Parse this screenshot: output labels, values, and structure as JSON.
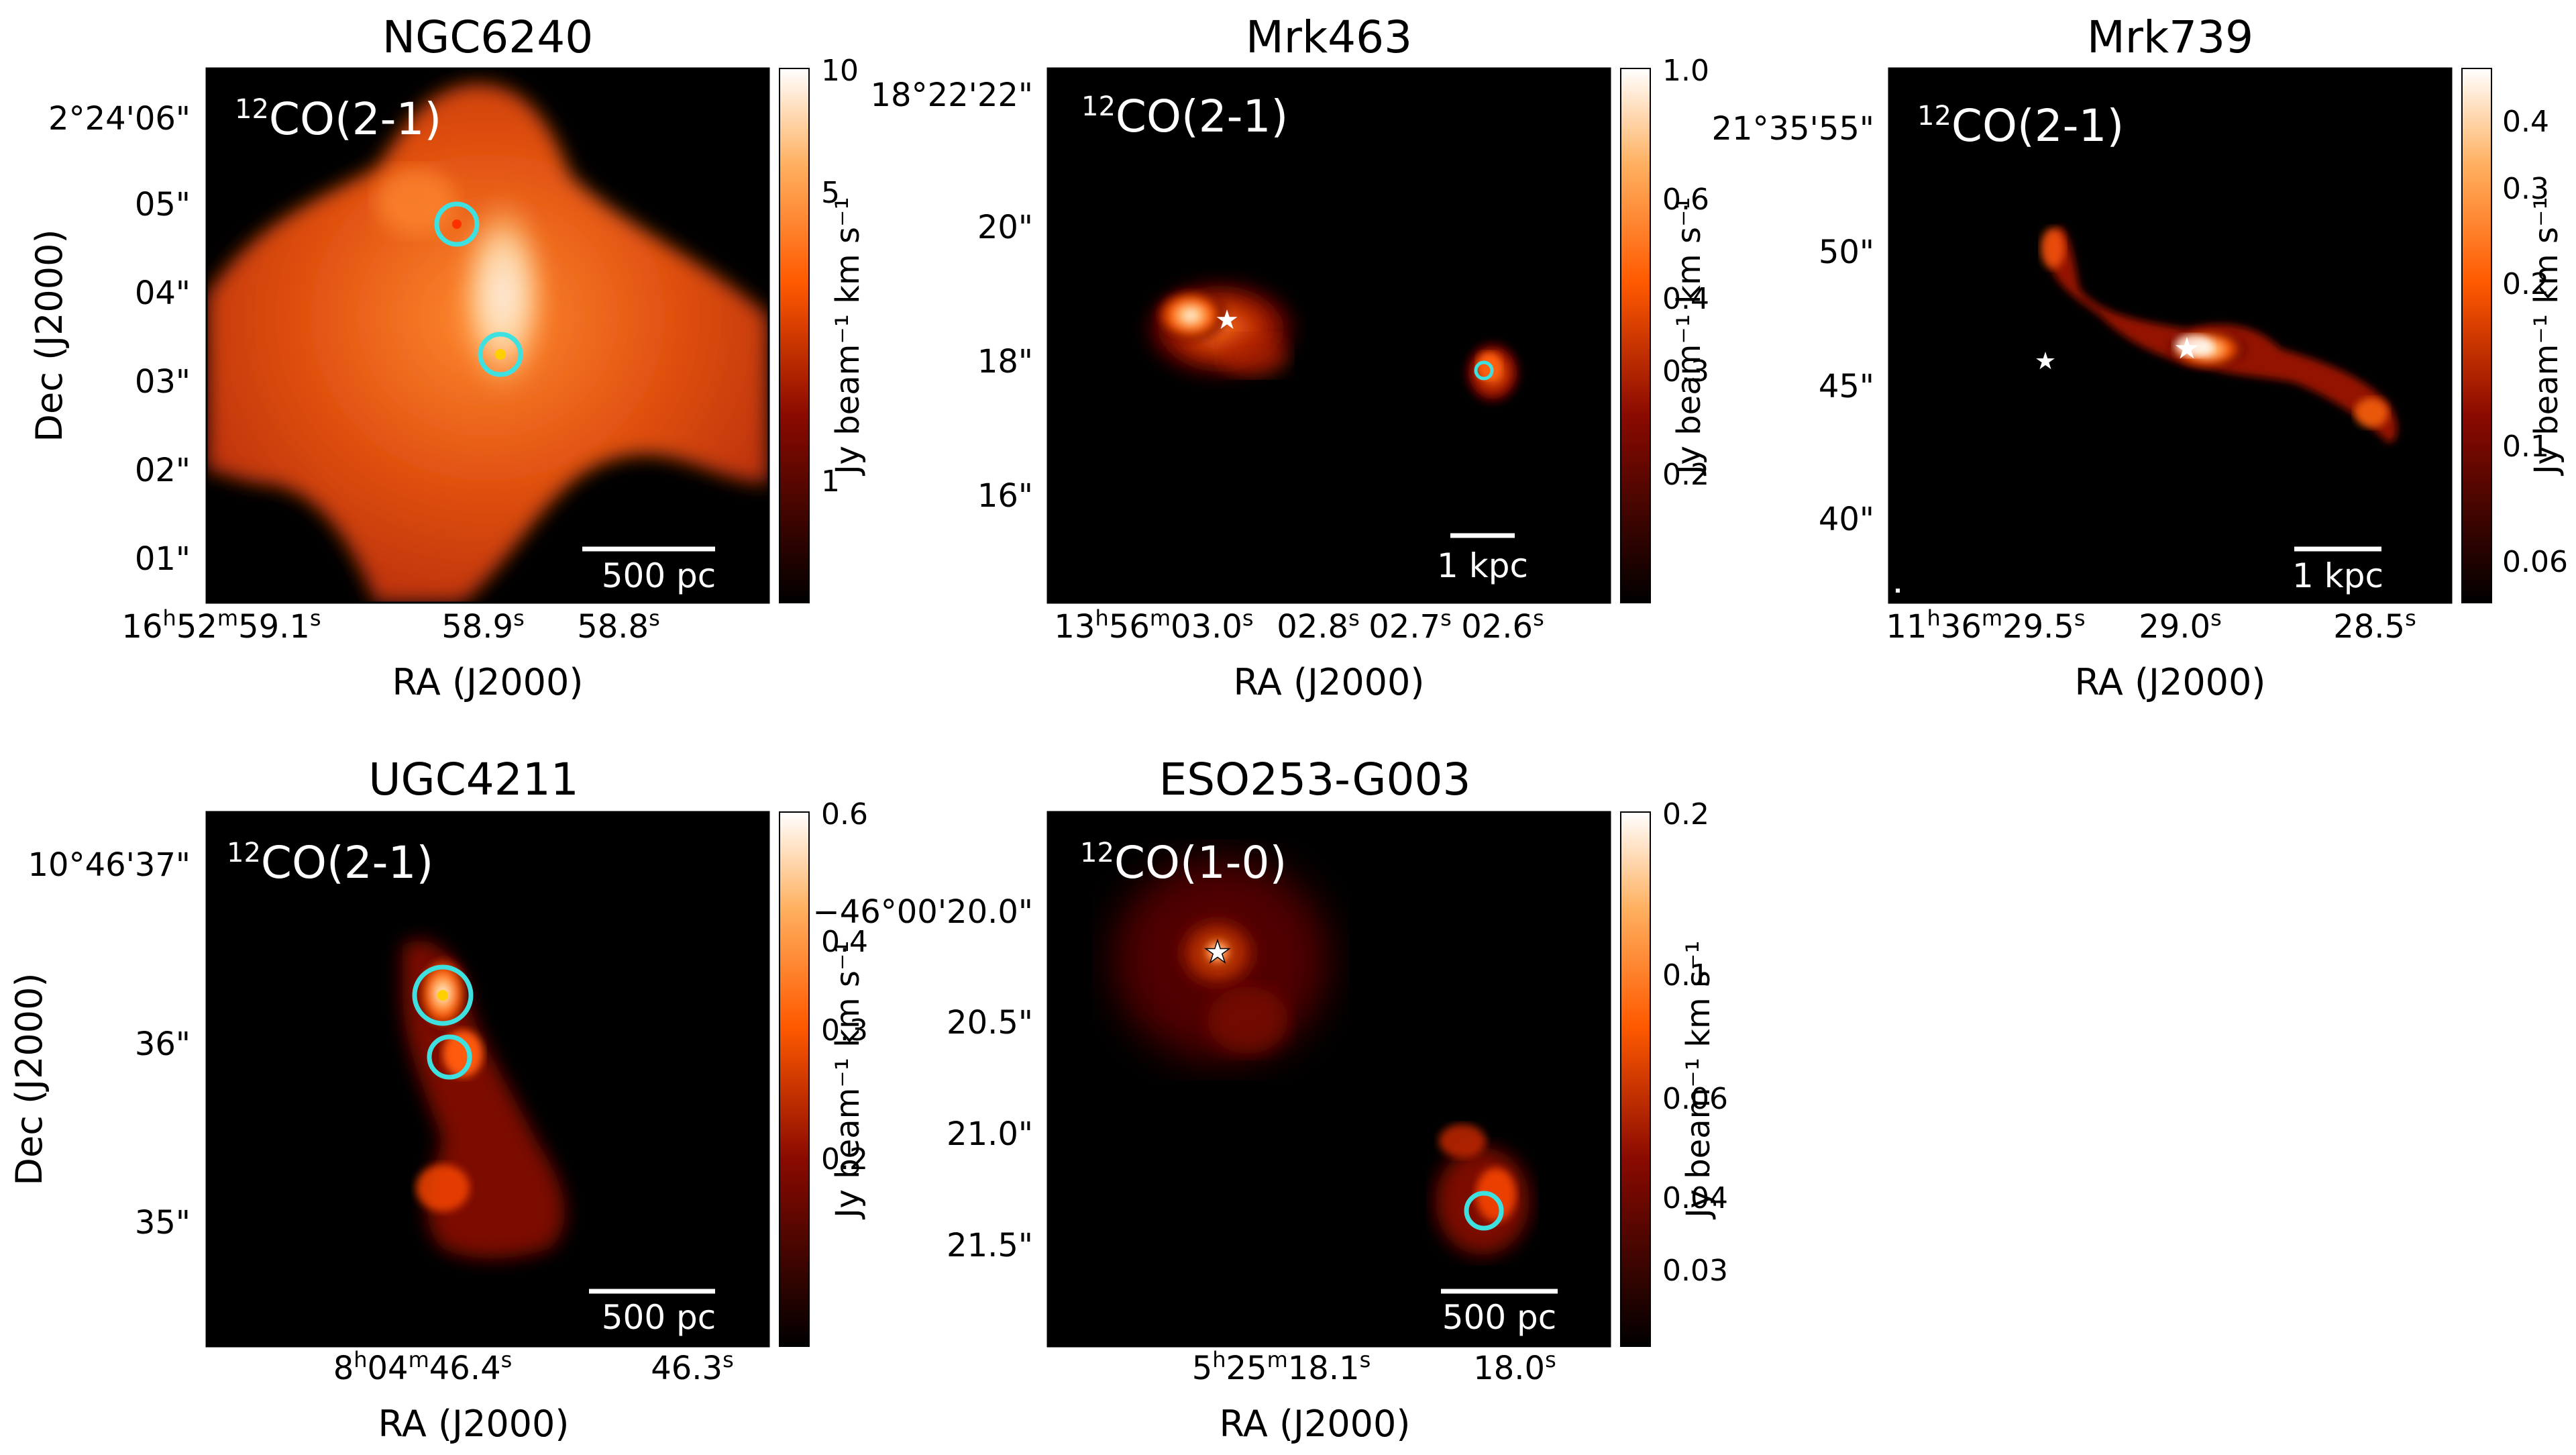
{
  "figure": {
    "panels": [
      {
        "name": "NGC6240",
        "line": {
          "iso": "12",
          "mol": "CO(2-1)"
        },
        "y_label": "Dec (J2000)",
        "x_label": "RA (J2000)",
        "y_ticks": [
          "2°24'06\"",
          "05\"",
          "04\"",
          "03\"",
          "02\"",
          "01\""
        ],
        "x_ticks": [
          {
            "parts": [
              "16",
              "h",
              "52",
              "m",
              "59.1",
              "s"
            ]
          },
          {
            "parts": [
              "",
              "",
              "",
              "",
              "58.9",
              "s"
            ]
          },
          {
            "parts": [
              "",
              "",
              "",
              "",
              "58.8",
              "s"
            ]
          }
        ],
        "colorbar": {
          "label": "Jy beam⁻¹ km s⁻¹",
          "ticks": [
            "10",
            "5",
            "1"
          ]
        },
        "scale_bar": "500 pc",
        "markers": {
          "circles": 2,
          "stars": 0
        }
      },
      {
        "name": "Mrk463",
        "line": {
          "iso": "12",
          "mol": "CO(2-1)"
        },
        "y_label": "",
        "x_label": "RA (J2000)",
        "y_ticks": [
          "18°22'22\"",
          "20\"",
          "18\"",
          "16\""
        ],
        "x_ticks": [
          {
            "parts": [
              "13",
              "h",
              "56",
              "m",
              "03.0",
              "s"
            ]
          },
          {
            "parts": [
              "",
              "",
              "",
              "",
              "02.8",
              "s"
            ]
          },
          {
            "parts": [
              "",
              "",
              "",
              "",
              "02.7",
              "s"
            ]
          },
          {
            "parts": [
              "",
              "",
              "",
              "",
              "02.6",
              "s"
            ]
          }
        ],
        "colorbar": {
          "label": "Jy beam⁻¹ km s⁻¹",
          "ticks": [
            "1.0",
            "0.6",
            "0.4",
            "0.3",
            "0.2"
          ]
        },
        "scale_bar": "1 kpc",
        "markers": {
          "circles": 1,
          "stars": 1
        }
      },
      {
        "name": "Mrk739",
        "line": {
          "iso": "12",
          "mol": "CO(2-1)"
        },
        "y_label": "",
        "x_label": "RA (J2000)",
        "y_ticks": [
          "21°35'55\"",
          "50\"",
          "45\"",
          "40\""
        ],
        "x_ticks": [
          {
            "parts": [
              "11",
              "h",
              "36",
              "m",
              "29.5",
              "s"
            ]
          },
          {
            "parts": [
              "",
              "",
              "",
              "",
              "29.0",
              "s"
            ]
          },
          {
            "parts": [
              "",
              "",
              "",
              "",
              "28.5",
              "s"
            ]
          }
        ],
        "colorbar": {
          "label": "Jy beam⁻¹ km s⁻¹",
          "ticks": [
            "0.4",
            "0.3",
            "0.2",
            "0.1",
            "0.06"
          ]
        },
        "scale_bar": "1 kpc",
        "markers": {
          "circles": 0,
          "stars": 2
        }
      },
      {
        "name": "UGC4211",
        "line": {
          "iso": "12",
          "mol": "CO(2-1)"
        },
        "y_label": "Dec (J2000)",
        "x_label": "RA (J2000)",
        "y_ticks": [
          "10°46'37\"",
          "36\"",
          "35\""
        ],
        "x_ticks": [
          {
            "parts": [
              "8",
              "h",
              "04",
              "m",
              "46.4",
              "s"
            ]
          },
          {
            "parts": [
              "",
              "",
              "",
              "",
              "46.3",
              "s"
            ]
          }
        ],
        "colorbar": {
          "label": "Jy beam⁻¹ km s⁻¹",
          "ticks": [
            "0.6",
            "0.4",
            "0.3",
            "0.2"
          ]
        },
        "scale_bar": "500 pc",
        "markers": {
          "circles": 2,
          "stars": 0
        }
      },
      {
        "name": "ESO253-G003",
        "line": {
          "iso": "12",
          "mol": "CO(1-0)"
        },
        "y_label": "",
        "x_label": "RA (J2000)",
        "y_ticks": [
          "−46°00'20.0\"",
          "20.5\"",
          "21.0\"",
          "21.5\""
        ],
        "x_ticks": [
          {
            "parts": [
              "5",
              "h",
              "25",
              "m",
              "18.1",
              "s"
            ]
          },
          {
            "parts": [
              "",
              "",
              "",
              "",
              "18.0",
              "s"
            ]
          }
        ],
        "colorbar": {
          "label": "Jy beam⁻¹ km s⁻¹",
          "ticks": [
            "0.2",
            "0.1",
            "0.06",
            "0.04",
            "0.03"
          ]
        },
        "scale_bar": "500 pc",
        "markers": {
          "circles": 1,
          "stars": 1
        }
      }
    ],
    "colors": {
      "background": "#ffffff",
      "map_floor": "#000000",
      "emission_high": "#ffffff",
      "emission_mid": "#ff7a1a",
      "emission_low": "#7a0000",
      "marker_circle": "#3fe0e0",
      "marker_star": "#ffffff",
      "scale_bar": "#ffffff"
    },
    "colormap": "gist_heat (black → red → orange → white)"
  }
}
